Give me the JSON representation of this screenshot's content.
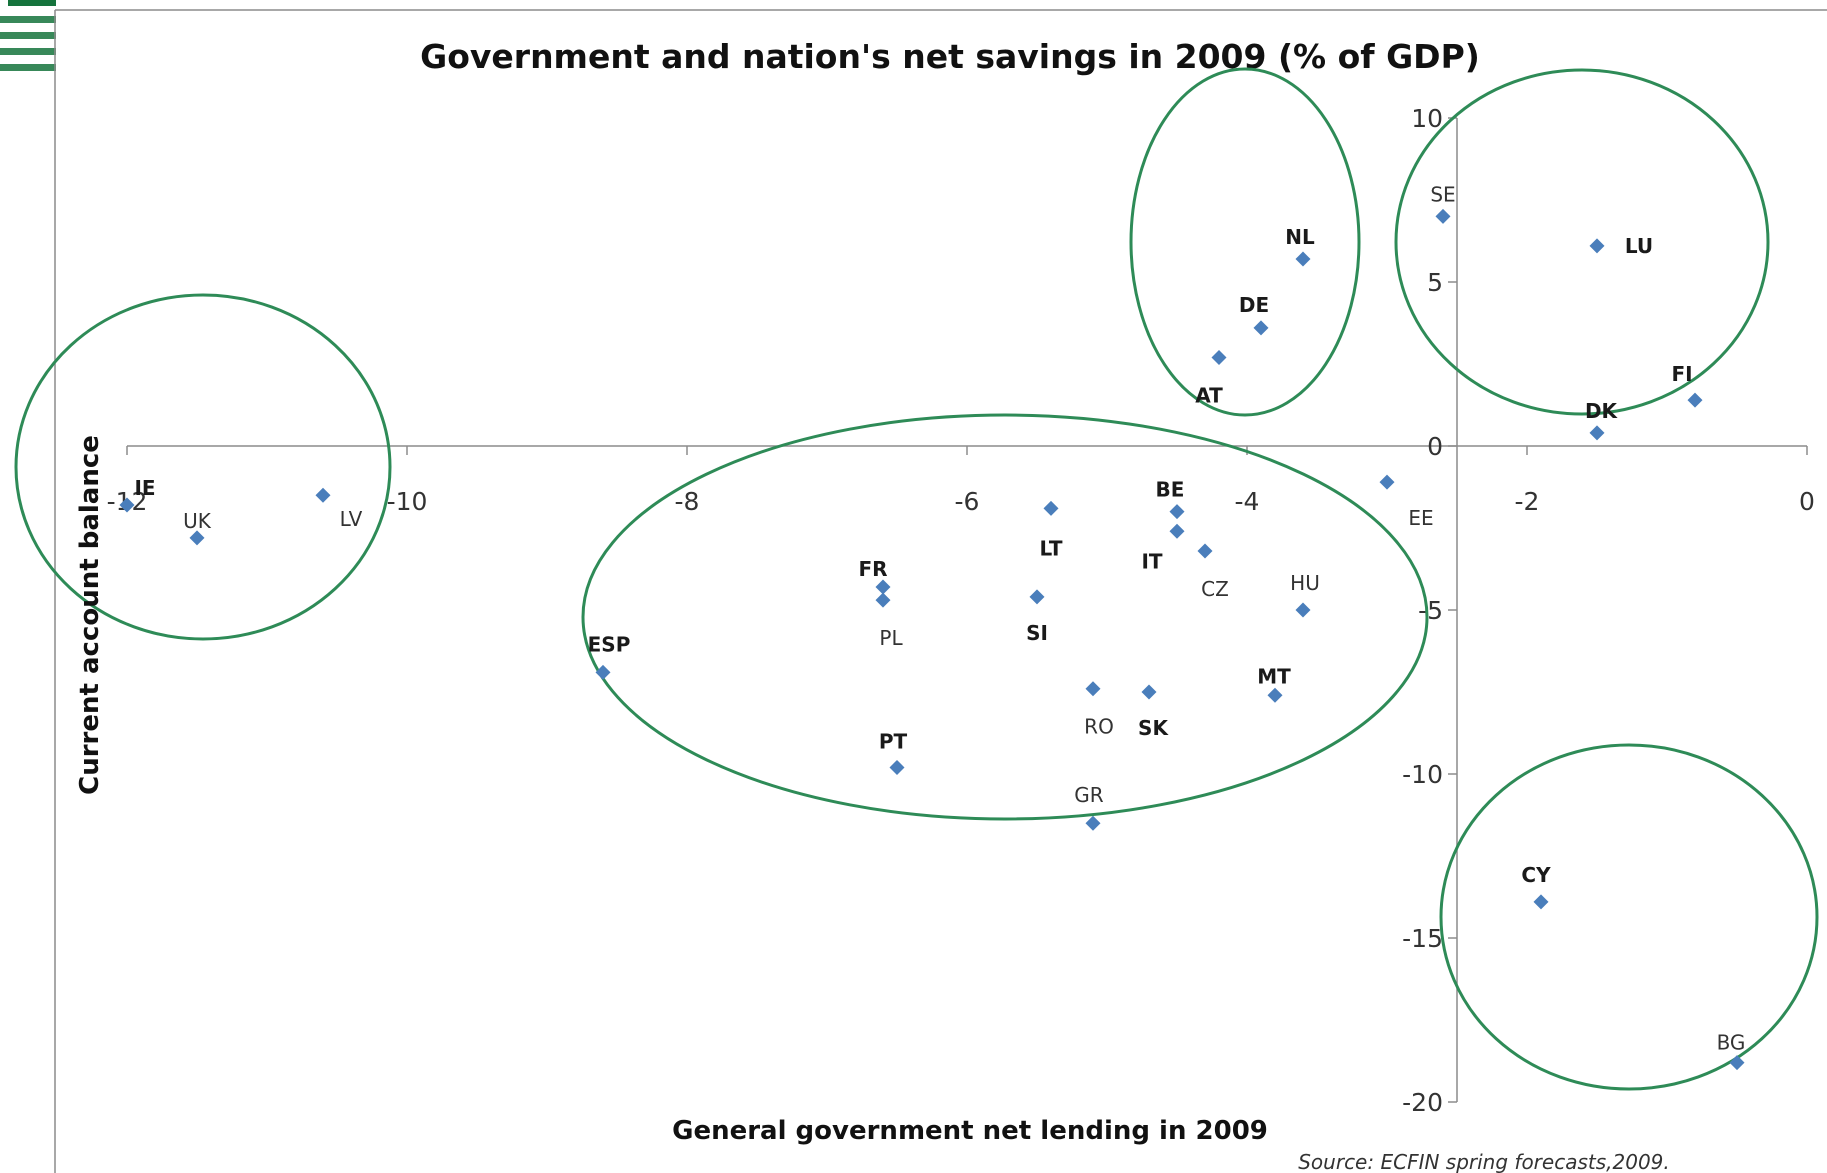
{
  "chart_data": {
    "type": "scatter",
    "title": "Government and nation's net savings in 2009 (% of GDP)",
    "xlabel": "General government net lending  in 2009",
    "ylabel": "Current account balance",
    "source": "Source: ECFIN spring forecasts,2009.",
    "xlim": [
      -12.1,
      0.2
    ],
    "ylim": [
      -20.5,
      10.8
    ],
    "x_ticks": [
      -12,
      -10,
      -8,
      -6,
      -4,
      -2,
      0
    ],
    "x_tick_labels": [
      "-12",
      "-10",
      "-8",
      "-6",
      "-4",
      "-2",
      "0"
    ],
    "y_ticks": [
      10,
      5,
      0,
      -5,
      -10,
      -15,
      -20
    ],
    "y_tick_labels": [
      "10",
      "5",
      "0",
      "-5",
      "-10",
      "-15",
      "-20"
    ],
    "grid": false,
    "marker_color": "#4a7ebb",
    "ellipse_color": "#2e8b57",
    "points": [
      {
        "label": "IE",
        "x": -12.0,
        "y": -1.8,
        "bold": true
      },
      {
        "label": "UK",
        "x": -11.5,
        "y": -2.8,
        "bold": false
      },
      {
        "label": "LV",
        "x": -10.6,
        "y": -1.5,
        "bold": false
      },
      {
        "label": "ESP",
        "x": -8.6,
        "y": -6.9,
        "bold": true
      },
      {
        "label": "FR",
        "x": -6.6,
        "y": -4.3,
        "bold": true
      },
      {
        "label": "PL",
        "x": -6.6,
        "y": -4.7,
        "bold": false
      },
      {
        "label": "PT",
        "x": -6.5,
        "y": -9.8,
        "bold": true
      },
      {
        "label": "LT",
        "x": -5.4,
        "y": -1.9,
        "bold": true
      },
      {
        "label": "SI",
        "x": -5.5,
        "y": -4.6,
        "bold": true
      },
      {
        "label": "RO",
        "x": -5.1,
        "y": -7.4,
        "bold": false
      },
      {
        "label": "GR",
        "x": -5.1,
        "y": -11.5,
        "bold": false
      },
      {
        "label": "SK",
        "x": -4.7,
        "y": -7.5,
        "bold": true
      },
      {
        "label": "BE",
        "x": -4.5,
        "y": -2.0,
        "bold": true
      },
      {
        "label": "IT",
        "x": -4.5,
        "y": -2.6,
        "bold": true
      },
      {
        "label": "CZ",
        "x": -4.3,
        "y": -3.2,
        "bold": false
      },
      {
        "label": "HU",
        "x": -3.6,
        "y": -5.0,
        "bold": false
      },
      {
        "label": "MT",
        "x": -3.8,
        "y": -7.6,
        "bold": true
      },
      {
        "label": "AT",
        "x": -4.2,
        "y": 2.7,
        "bold": true
      },
      {
        "label": "DE",
        "x": -3.9,
        "y": 3.6,
        "bold": true
      },
      {
        "label": "NL",
        "x": -3.6,
        "y": 5.7,
        "bold": true
      },
      {
        "label": "EE",
        "x": -3.0,
        "y": -1.1,
        "bold": false
      },
      {
        "label": "SE",
        "x": -2.6,
        "y": 7.0,
        "bold": false
      },
      {
        "label": "LU",
        "x": -1.5,
        "y": 6.1,
        "bold": true
      },
      {
        "label": "DK",
        "x": -1.5,
        "y": 0.4,
        "bold": true
      },
      {
        "label": "FI",
        "x": -0.8,
        "y": 1.4,
        "bold": true
      },
      {
        "label": "CY",
        "x": -1.9,
        "y": -13.9,
        "bold": true
      },
      {
        "label": "BG",
        "x": -0.5,
        "y": -18.8,
        "bold": false
      }
    ]
  }
}
